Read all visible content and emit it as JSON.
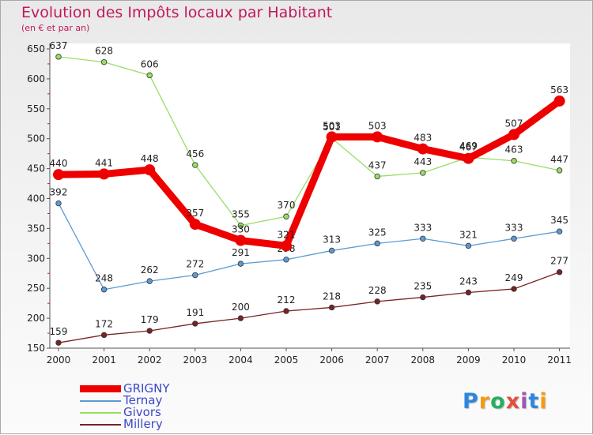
{
  "chart_data": {
    "type": "line",
    "title": "Evolution des Impôts locaux par Habitant",
    "subtitle": "(en € et par an)",
    "x": [
      "2000",
      "2001",
      "2002",
      "2003",
      "2004",
      "2005",
      "2006",
      "2007",
      "2008",
      "2009",
      "2010",
      "2011"
    ],
    "ylim": [
      150,
      650
    ],
    "yticks": [
      150,
      200,
      250,
      300,
      350,
      400,
      450,
      500,
      550,
      600,
      650
    ],
    "grid": false,
    "legend_position": "bottom-left",
    "series": [
      {
        "name": "GRIGNY",
        "color": "#ee0000",
        "values": [
          440,
          441,
          448,
          357,
          330,
          321,
          503,
          503,
          483,
          467,
          507,
          563
        ]
      },
      {
        "name": "Ternay",
        "color": "#5b9bd5",
        "values": [
          392,
          248,
          262,
          272,
          291,
          298,
          313,
          325,
          333,
          321,
          333,
          345
        ]
      },
      {
        "name": "Givors",
        "color": "#99dd66",
        "values": [
          637,
          628,
          606,
          456,
          355,
          370,
          501,
          437,
          443,
          469,
          463,
          447
        ]
      },
      {
        "name": "Millery",
        "color": "#7a2222",
        "values": [
          159,
          172,
          179,
          191,
          200,
          212,
          218,
          228,
          235,
          243,
          249,
          277
        ]
      }
    ]
  },
  "brand": {
    "letters": [
      "P",
      "r",
      "o",
      "x",
      "i",
      "t",
      "i"
    ],
    "colors": [
      "#2e86de",
      "#f39c12",
      "#27ae60",
      "#e74c3c",
      "#9b59b6",
      "#2e86de",
      "#f39c12"
    ]
  }
}
